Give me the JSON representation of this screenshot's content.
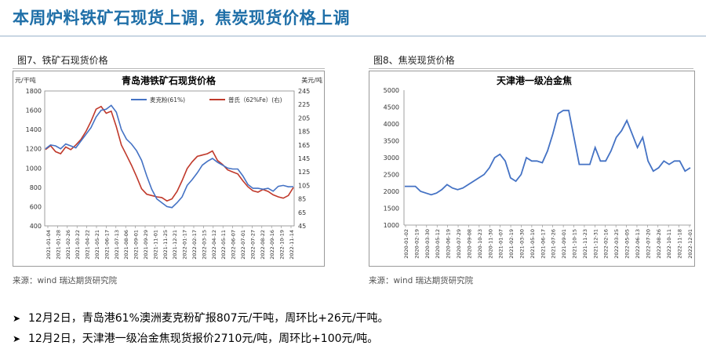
{
  "header": {
    "title": "本周炉料铁矿石现货上调，焦炭现货价格上调"
  },
  "figures": [
    {
      "caption": "图7、铁矿石现货价格",
      "source": "来源：wind 瑞达期货研究院"
    },
    {
      "caption": "图8、焦炭现货价格",
      "source": "来源：wind 瑞达期货研究院"
    }
  ],
  "bullets": [
    "12月2日，青岛港61%澳洲麦克粉矿报807元/干吨，周环比+26元/干吨。",
    "12月2日，天津港一级冶金焦现货报价2710元/吨，周环比+100元/吨。"
  ],
  "chart_data": [
    {
      "type": "line",
      "title": "青岛港铁矿石现货价格",
      "left_unit": "元/干吨",
      "right_unit": "美元/吨",
      "ylim": [
        400,
        1800
      ],
      "y_ticks": [
        400,
        600,
        800,
        1000,
        1200,
        1400,
        1600,
        1800
      ],
      "y2lim": [
        45,
        245
      ],
      "y2_ticks": [
        45,
        65,
        85,
        105,
        125,
        145,
        165,
        185,
        205,
        225,
        245
      ],
      "x_tick_labels": [
        "2021-01-04",
        "2021-01-28",
        "2021-02-26",
        "2021-03-22",
        "2021-04-22",
        "2021-05-21",
        "2021-06-17",
        "2021-07-13",
        "2021-08-06",
        "2021-09-01",
        "2021-09-29",
        "2021-11-01",
        "2021-11-25",
        "2021-12-21",
        "2022-01-17",
        "2022-02-17",
        "2022-03-15",
        "2022-04-12",
        "2022-05-11",
        "2022-06-07",
        "2022-07-01",
        "2022-07-27",
        "2022-08-22",
        "2022-09-16",
        "2022-10-19",
        "2022-11-14"
      ],
      "legend_position": "top",
      "colors": {
        "series1": "#4472c4",
        "series2": "#c0392b"
      },
      "series": [
        {
          "name": "麦克粉(61%)",
          "axis": "left",
          "values": [
            1200,
            1240,
            1230,
            1200,
            1250,
            1230,
            1210,
            1280,
            1350,
            1420,
            1530,
            1600,
            1610,
            1650,
            1580,
            1400,
            1300,
            1250,
            1180,
            1080,
            920,
            780,
            680,
            640,
            600,
            590,
            640,
            700,
            820,
            880,
            950,
            1030,
            1070,
            1100,
            1060,
            1030,
            1000,
            990,
            990,
            920,
            830,
            790,
            790,
            780,
            790,
            760,
            810,
            820,
            805,
            807
          ]
        },
        {
          "name": "普氏（62%Fe）(右)",
          "axis": "right",
          "values": [
            158,
            164,
            155,
            152,
            162,
            158,
            165,
            173,
            185,
            200,
            218,
            222,
            212,
            215,
            192,
            165,
            150,
            135,
            118,
            100,
            92,
            90,
            88,
            87,
            82,
            85,
            96,
            112,
            130,
            140,
            148,
            150,
            152,
            156,
            142,
            136,
            128,
            125,
            122,
            112,
            103,
            97,
            95,
            99,
            96,
            91,
            88,
            86,
            90,
            102
          ]
        }
      ]
    },
    {
      "type": "line",
      "title": "天津港一级冶金焦",
      "ylim": [
        1000,
        5000
      ],
      "y_ticks": [
        1000,
        1500,
        2000,
        2500,
        3000,
        3500,
        4000,
        4500,
        5000
      ],
      "x_tick_labels": [
        "2020-01-02",
        "2020-02-19",
        "2020-03-30",
        "2020-05-12",
        "2020-06-19",
        "2020-07-29",
        "2020-09-08",
        "2020-10-23",
        "2020-11-30",
        "2021-01-07",
        "2021-02-19",
        "2021-03-30",
        "2021-05-10",
        "2021-06-17",
        "2021-07-26",
        "2021-09-01",
        "2021-10-15",
        "2021-11-23",
        "2021-12-31",
        "2022-02-16",
        "2022-03-25",
        "2022-05-05",
        "2022-06-13",
        "2022-07-20",
        "2022-08-26",
        "2022-10-11",
        "2022-11-18",
        "2022-12-01"
      ],
      "colors": {
        "series1": "#4472c4"
      },
      "series": [
        {
          "name": "",
          "values": [
            2150,
            2150,
            2150,
            2000,
            1950,
            1900,
            1950,
            2050,
            2200,
            2100,
            2050,
            2100,
            2200,
            2300,
            2400,
            2500,
            2700,
            3000,
            3100,
            2900,
            2400,
            2300,
            2500,
            3000,
            2900,
            2900,
            2850,
            3200,
            3700,
            4300,
            4400,
            4400,
            3600,
            2800,
            2800,
            2800,
            3300,
            2900,
            2900,
            3200,
            3600,
            3800,
            4100,
            3700,
            3300,
            3600,
            2900,
            2600,
            2700,
            2900,
            2800,
            2900,
            2900,
            2600,
            2700
          ]
        }
      ]
    }
  ]
}
